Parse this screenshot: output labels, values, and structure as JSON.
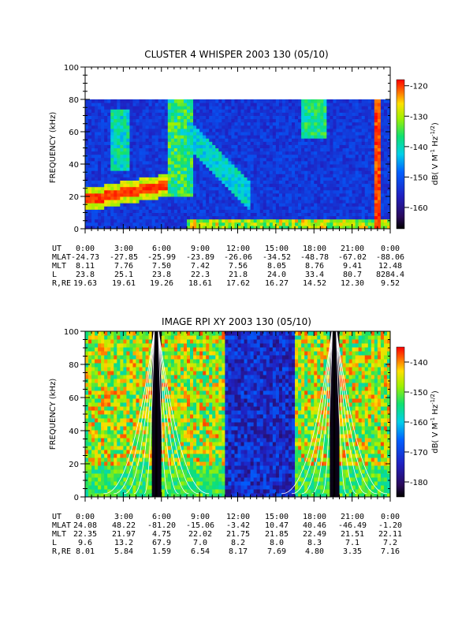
{
  "chart_data": [
    {
      "type": "heatmap",
      "title": "CLUSTER 4 WHISPER 2003 130 (05/10)",
      "ylabel": "FREQUENCY (kHz)",
      "ylim": [
        0,
        100
      ],
      "y_ticks": [
        "0",
        "20",
        "40",
        "60",
        "80",
        "100"
      ],
      "data_ylim": [
        0,
        80
      ],
      "x_ticks": [
        "0:00",
        "3:00",
        "6:00",
        "9:00",
        "12:00",
        "15:00",
        "18:00",
        "21:00",
        "0:00"
      ],
      "x_range_hours": [
        0,
        24
      ],
      "colorbar": {
        "label": "dB( V M",
        "label_sup1": "-1",
        "label_mid": " Hz",
        "label_sup2": "-1/2",
        "label_end": ")",
        "range": [
          -167,
          -118
        ],
        "ticks": [
          "-120",
          "-130",
          "-140",
          "-150",
          "-160"
        ],
        "tick_values": [
          -120,
          -130,
          -140,
          -150,
          -160
        ]
      },
      "ephemeris": [
        {
          "label": "UT",
          "values": [
            "0:00",
            "3:00",
            "6:00",
            "9:00",
            "12:00",
            "15:00",
            "18:00",
            "21:00",
            "0:00"
          ]
        },
        {
          "label": "MLAT",
          "values": [
            "-24.73",
            "-27.85",
            "-25.99",
            "-23.89",
            "-26.06",
            "-34.52",
            "-48.78",
            "-67.02",
            "-88.06"
          ]
        },
        {
          "label": "MLT",
          "values": [
            "8.11",
            "7.76",
            "7.50",
            "7.42",
            "7.56",
            "8.05",
            "8.76",
            "9.41",
            "12.48"
          ]
        },
        {
          "label": "L",
          "values": [
            "23.8",
            "25.1",
            "23.8",
            "22.3",
            "21.8",
            "24.0",
            "33.4",
            "80.7",
            "8284.4"
          ]
        },
        {
          "label": "R,RE",
          "values": [
            "19.63",
            "19.61",
            "19.26",
            "18.61",
            "17.62",
            "16.27",
            "14.52",
            "12.30",
            "9.52"
          ]
        }
      ]
    },
    {
      "type": "heatmap",
      "title": "IMAGE RPI XY 2003 130 (05/10)",
      "ylabel": "FREQUENCY (kHz)",
      "ylim": [
        0,
        100
      ],
      "y_ticks": [
        "0",
        "20",
        "40",
        "60",
        "80",
        "100"
      ],
      "x_ticks": [
        "0:00",
        "3:00",
        "6:00",
        "9:00",
        "12:00",
        "15:00",
        "18:00",
        "21:00",
        "0:00"
      ],
      "x_range_hours": [
        0,
        24
      ],
      "colorbar": {
        "label": "dB( V M",
        "label_sup1": "-1",
        "label_mid": " Hz",
        "label_sup2": "-1/2",
        "label_end": ")",
        "range": [
          -185,
          -135
        ],
        "ticks": [
          "-140",
          "-150",
          "-160",
          "-170",
          "-180"
        ],
        "tick_values": [
          -140,
          -150,
          -160,
          -170,
          -180
        ]
      },
      "overlay_curves": "white",
      "ephemeris": [
        {
          "label": "UT",
          "values": [
            "0:00",
            "3:00",
            "6:00",
            "9:00",
            "12:00",
            "15:00",
            "18:00",
            "21:00",
            "0:00"
          ]
        },
        {
          "label": "MLAT",
          "values": [
            "24.08",
            "48.22",
            "-81.20",
            "-15.06",
            "-3.42",
            "10.47",
            "40.46",
            "-46.49",
            "-1.20"
          ]
        },
        {
          "label": "MLT",
          "values": [
            "22.35",
            "21.97",
            "4.75",
            "22.02",
            "21.75",
            "21.85",
            "22.49",
            "21.51",
            "22.11"
          ]
        },
        {
          "label": "L",
          "values": [
            "9.6",
            "13.2",
            "67.9",
            "7.0",
            "8.2",
            "8.0",
            "8.3",
            "7.1",
            "7.2"
          ]
        },
        {
          "label": "R,RE",
          "values": [
            "8.01",
            "5.84",
            "1.59",
            "6.54",
            "8.17",
            "7.69",
            "4.80",
            "3.35",
            "7.16"
          ]
        }
      ]
    }
  ]
}
